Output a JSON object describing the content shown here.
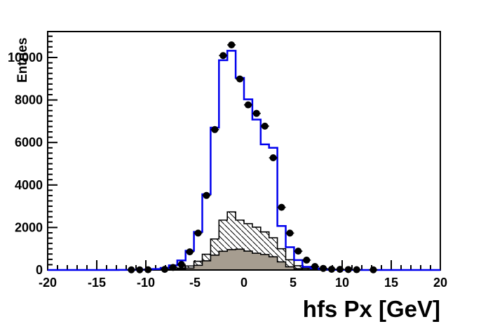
{
  "window": {
    "background": "#ffffff"
  },
  "chart_data": {
    "type": "bar",
    "subtype": "overlaid-step-histograms",
    "title": "",
    "xlabel": "hfs Px [GeV]",
    "ylabel": "Entries",
    "x_range": [
      -20,
      20
    ],
    "y_range": [
      0,
      11220
    ],
    "x_major_ticks": [
      -20,
      -15,
      -10,
      -5,
      0,
      5,
      10,
      15,
      20
    ],
    "x_minor_step": 1,
    "y_major_ticks": [
      0,
      2000,
      4000,
      6000,
      8000,
      10000
    ],
    "y_minor_step": 250,
    "grid": false,
    "legend": "none",
    "bin_start": -20.4,
    "bin_width": 0.85,
    "n_bins": 48,
    "series": [
      {
        "name": "total-mc-histogram",
        "style": "step-line",
        "color": "#0000ee",
        "line_width": 2.5,
        "values": [
          0,
          0,
          0,
          0,
          0,
          0,
          0,
          0,
          0,
          3,
          6,
          10,
          20,
          45,
          100,
          220,
          450,
          907,
          1793,
          3562,
          6700,
          9870,
          10315,
          9040,
          8030,
          7080,
          5910,
          5750,
          2070,
          1073,
          465,
          150,
          80,
          40,
          18,
          10,
          6,
          4,
          2,
          0,
          0,
          0,
          0,
          0,
          0,
          0,
          0,
          0
        ]
      },
      {
        "name": "background-hatched-histogram",
        "style": "step-fill-hatched",
        "fill": "diagonal-hatch-backslash",
        "hatch_color": "#000000",
        "outline_color": "#000000",
        "values": [
          0,
          0,
          0,
          0,
          0,
          0,
          0,
          0,
          0,
          0,
          0,
          0,
          0,
          0,
          0,
          40,
          90,
          190,
          410,
          740,
          1460,
          2347,
          2732,
          2347,
          2180,
          2015,
          1793,
          1517,
          1000,
          480,
          200,
          80,
          30,
          10,
          0,
          0,
          0,
          0,
          0,
          0,
          0,
          0,
          0,
          0,
          0,
          0,
          0,
          0
        ]
      },
      {
        "name": "background-solid-histogram",
        "style": "step-fill-solid",
        "fill_color": "#a69d90",
        "outline_color": "#000000",
        "values": [
          0,
          0,
          0,
          0,
          0,
          0,
          0,
          0,
          0,
          0,
          0,
          0,
          0,
          0,
          0,
          0,
          40,
          90,
          220,
          430,
          700,
          880,
          960,
          980,
          890,
          790,
          730,
          620,
          380,
          150,
          60,
          20,
          0,
          0,
          0,
          0,
          0,
          0,
          0,
          0,
          0,
          0,
          0,
          0,
          0,
          0,
          0,
          0
        ]
      },
      {
        "name": "data-points",
        "style": "filled-circle-markers",
        "color": "#000000",
        "marker_radius": 5,
        "points_format": "[bin_index, entries]",
        "points": [
          [
            10,
            8
          ],
          [
            11,
            10
          ],
          [
            12,
            12
          ],
          [
            14,
            30
          ],
          [
            15,
            120
          ],
          [
            16,
            260
          ],
          [
            17,
            853
          ],
          [
            18,
            1736
          ],
          [
            19,
            3509
          ],
          [
            20,
            6607
          ],
          [
            21,
            10090
          ],
          [
            22,
            10593
          ],
          [
            23,
            8990
          ],
          [
            24,
            7770
          ],
          [
            25,
            7370
          ],
          [
            26,
            6770
          ],
          [
            27,
            5280
          ],
          [
            28,
            2950
          ],
          [
            29,
            1736
          ],
          [
            30,
            886
          ],
          [
            31,
            465
          ],
          [
            32,
            166
          ],
          [
            33,
            76
          ],
          [
            34,
            35
          ],
          [
            35,
            28
          ],
          [
            36,
            22
          ],
          [
            37,
            15
          ],
          [
            39,
            10
          ]
        ]
      }
    ]
  }
}
